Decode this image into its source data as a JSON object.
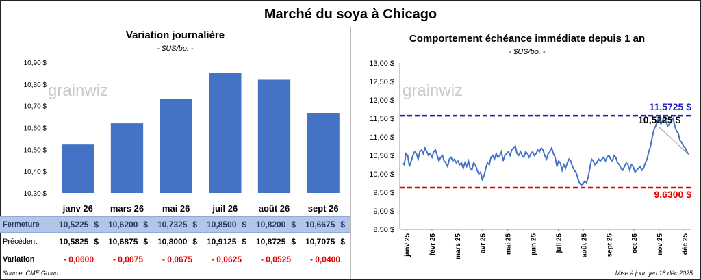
{
  "title": "Marché du soya à Chicago",
  "left": {
    "title": "Variation journalière",
    "unit": "- $US/bo. -",
    "watermark": "grainwiz",
    "ytick_labels": [
      "10,90 $",
      "10,80 $",
      "10,70 $",
      "10,60 $",
      "10,50 $",
      "10,40 $",
      "10,30 $"
    ],
    "table": {
      "row1_label": "Fermeture",
      "row2_label": "Précédent",
      "row3_label": "Variation",
      "fermeture": [
        "10,5225",
        "10,6200",
        "10,7325",
        "10,8500",
        "10,8200",
        "10,6675"
      ],
      "precedent": [
        "10,5825",
        "10,6875",
        "10,8000",
        "10,9125",
        "10,8725",
        "10,7075"
      ],
      "variation": [
        "- 0,0600",
        "- 0,0675",
        "- 0,0675",
        "- 0,0625",
        "- 0,0525",
        "- 0,0400"
      ],
      "currency": "$"
    }
  },
  "right": {
    "title": "Comportement  échéance immédiate depuis 1 an",
    "unit": "- $US/bo. -",
    "watermark": "grainwiz",
    "ytick_labels": [
      "13,00 $",
      "12,50 $",
      "12,00 $",
      "11,50 $",
      "11,00 $",
      "10,50 $",
      "10,00 $",
      "9,50 $",
      "9,00 $",
      "8,50 $"
    ],
    "xtick_labels": [
      "janv 25",
      "févr 25",
      "mars 25",
      "avr 25",
      "mai 25",
      "juin 25",
      "juil 25",
      "août 25",
      "sept 25",
      "oct 25",
      "nov 25",
      "déc 25"
    ],
    "high_label": "11,5725 $",
    "low_label": "9,6300 $",
    "last_label": "10,5225 $"
  },
  "footer": {
    "source": "Source: CME Group",
    "updated": "Mise à jour: jeu 18 déc 2025"
  },
  "chart_data": [
    {
      "type": "bar",
      "title": "Variation journalière",
      "categories": [
        "janv 26",
        "mars 26",
        "mai 26",
        "juil 26",
        "août 26",
        "sept 26"
      ],
      "values": [
        10.5225,
        10.62,
        10.7325,
        10.85,
        10.82,
        10.6675
      ],
      "ylim": [
        10.3,
        10.9
      ],
      "color": "#4472c4",
      "grid": false
    },
    {
      "type": "line",
      "title": "Comportement  échéance immédiate depuis 1 an",
      "x_start": "janv 25",
      "x_end": "déc 25",
      "values": [
        10.3,
        10.25,
        10.55,
        10.5,
        10.2,
        10.35,
        10.5,
        10.6,
        10.55,
        10.4,
        10.6,
        10.65,
        10.55,
        10.7,
        10.6,
        10.5,
        10.55,
        10.45,
        10.6,
        10.65,
        10.5,
        10.35,
        10.45,
        10.5,
        10.35,
        10.3,
        10.2,
        10.4,
        10.45,
        10.35,
        10.4,
        10.3,
        10.35,
        10.25,
        10.3,
        10.15,
        10.3,
        10.2,
        10.35,
        10.15,
        10.1,
        10.3,
        10.25,
        10.1,
        10.0,
        10.05,
        9.85,
        9.95,
        10.15,
        10.3,
        10.25,
        10.45,
        10.5,
        10.4,
        10.55,
        10.45,
        10.5,
        10.6,
        10.35,
        10.5,
        10.55,
        10.6,
        10.5,
        10.65,
        10.7,
        10.75,
        10.55,
        10.5,
        10.6,
        10.5,
        10.45,
        10.6,
        10.55,
        10.45,
        10.55,
        10.6,
        10.5,
        10.55,
        10.65,
        10.6,
        10.7,
        10.65,
        10.5,
        10.4,
        10.55,
        10.6,
        10.7,
        10.55,
        10.45,
        10.2,
        10.35,
        10.3,
        10.1,
        10.25,
        10.15,
        10.3,
        10.4,
        10.35,
        10.2,
        10.1,
        10.05,
        9.9,
        9.75,
        9.7,
        9.72,
        9.8,
        9.75,
        9.9,
        10.15,
        10.4,
        10.35,
        10.25,
        10.3,
        10.4,
        10.35,
        10.4,
        10.45,
        10.35,
        10.45,
        10.5,
        10.4,
        10.35,
        10.5,
        10.45,
        10.3,
        10.25,
        10.15,
        10.1,
        10.2,
        10.3,
        10.25,
        10.1,
        10.25,
        10.2,
        10.05,
        10.1,
        10.15,
        10.2,
        10.1,
        10.15,
        10.3,
        10.4,
        10.6,
        10.75,
        11.0,
        11.2,
        11.3,
        11.45,
        11.5,
        11.35,
        11.45,
        11.55,
        11.4,
        11.3,
        11.35,
        11.45,
        11.5,
        11.3,
        11.15,
        11.1,
        10.9,
        10.85,
        10.75,
        10.7,
        10.6,
        10.5225
      ],
      "last_point_label": "10,5225 $",
      "reference_lines": [
        {
          "label": "11,5725 $",
          "value": 11.5725,
          "color": "#1f1fbf",
          "style": "dashed"
        },
        {
          "label": "9,6300 $",
          "value": 9.63,
          "color": "#e00000",
          "style": "dashed"
        }
      ],
      "ylim": [
        8.5,
        13.0
      ],
      "grid": false
    }
  ]
}
